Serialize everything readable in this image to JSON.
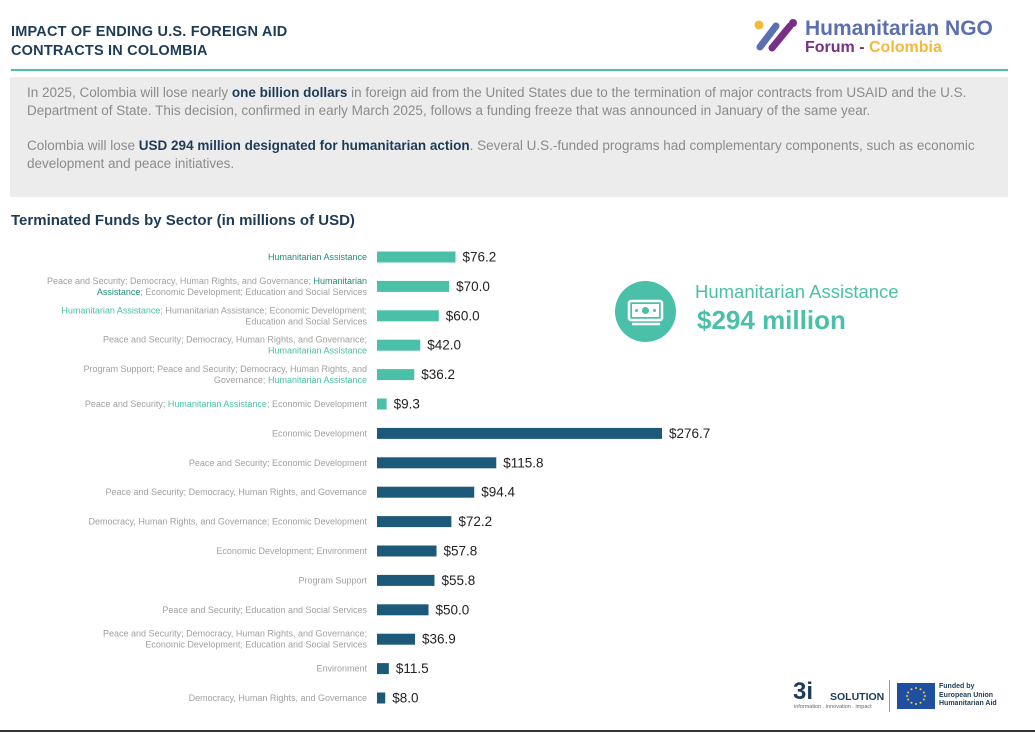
{
  "header": {
    "title_line1": "IMPACT OF  ENDING U.S. FOREIGN AID",
    "title_line2": "CONTRACTS IN COLOMBIA",
    "logo_line1": "Humanitarian NGO",
    "logo_forum": "Forum",
    "logo_dash": " - ",
    "logo_colombia": "Colombia"
  },
  "intro": {
    "p1_a": "In 2025, Colombia will lose nearly ",
    "p1_b": "one billion dollars",
    "p1_c": " in foreign aid from the United States due to the termination of major contracts from USAID and the U.S. Department of State. This decision, confirmed in early March 2025, follows a funding freeze that was announced in January of the same year.",
    "p2_a": "Colombia will lose ",
    "p2_b": "USD 294 million designated for humanitarian action",
    "p2_c": ". Several U.S.-funded programs had complementary components, such as economic development and peace initiatives."
  },
  "chart_title": "Terminated Funds by Sector (in millions of USD)",
  "callout": {
    "label": "Humanitarian Assistance",
    "value": "$294 million",
    "icon": "money-icon"
  },
  "colors": {
    "humanitarian": "#4ac0a8",
    "other": "#1d5a7a",
    "label_grey": "#a0a0a0"
  },
  "chart_data": {
    "type": "bar",
    "orientation": "horizontal",
    "title": "Terminated Funds by Sector (in millions of USD)",
    "unit": "millions of USD",
    "categories": [
      [
        {
          "t": "Humanitarian Assistance",
          "h": true,
          "dark": true
        }
      ],
      [
        {
          "t": "Peace and Security; Democracy, Human Rights, and Governance; "
        },
        {
          "t": "Humanitarian",
          "h": true,
          "dark": true
        },
        {
          "t": "\n"
        },
        {
          "t": "Assistance",
          "h": true,
          "dark": true
        },
        {
          "t": "; Economic Development; Education and Social Services"
        }
      ],
      [
        {
          "t": "Humanitarian Assistance",
          "h": true
        },
        {
          "t": "; Humanitarian Assistance; Economic Development;\nEducation and Social Services"
        }
      ],
      [
        {
          "t": "Peace and Security; Democracy, Human Rights, and Governance;\n"
        },
        {
          "t": "Humanitarian Assistance",
          "h": true
        }
      ],
      [
        {
          "t": "Program Support; Peace and Security; Democracy, Human Rights, and\nGovernance; "
        },
        {
          "t": "Humanitarian Assistance",
          "h": true
        }
      ],
      [
        {
          "t": "Peace and Security; "
        },
        {
          "t": "Humanitarian Assistance",
          "h": true
        },
        {
          "t": "; Economic Development"
        }
      ],
      [
        {
          "t": "Economic Development"
        }
      ],
      [
        {
          "t": "Peace and Security; Economic Development"
        }
      ],
      [
        {
          "t": "Peace and Security; Democracy, Human Rights, and Governance"
        }
      ],
      [
        {
          "t": "Democracy, Human Rights, and Governance; Economic Development"
        }
      ],
      [
        {
          "t": "Economic Development; Environment"
        }
      ],
      [
        {
          "t": "Program Support"
        }
      ],
      [
        {
          "t": "Peace and Security; Education and Social Services"
        }
      ],
      [
        {
          "t": "Peace and Security; Democracy, Human Rights, and Governance;\nEconomic Development; Education and Social Services"
        }
      ],
      [
        {
          "t": "Environment"
        }
      ],
      [
        {
          "t": "Democracy, Human Rights, and Governance"
        }
      ]
    ],
    "values": [
      76.2,
      70.0,
      60.0,
      42.0,
      36.2,
      9.3,
      276.7,
      115.8,
      94.4,
      72.2,
      57.8,
      55.8,
      50.0,
      36.9,
      11.5,
      8.0
    ],
    "value_labels": [
      "$76.2",
      "$70.0",
      "$60.0",
      "$42.0",
      "$36.2",
      "$9.3",
      "$276.7",
      "$115.8",
      "$94.4",
      "$72.2",
      "$57.8",
      "$55.8",
      "$50.0",
      "$36.9",
      "$11.5",
      "$8.0"
    ],
    "humanitarian_group": [
      true,
      true,
      true,
      true,
      true,
      true,
      false,
      false,
      false,
      false,
      false,
      false,
      false,
      false,
      false,
      false
    ],
    "grid": false,
    "legend": "none"
  },
  "footer": {
    "brand_3i": "3i",
    "brand_solution": "SOLUTION",
    "brand_tagline": "information . innovation . impact",
    "eu_line1": "Funded by",
    "eu_line2": "European Union",
    "eu_line3": "Humanitarian Aid"
  }
}
